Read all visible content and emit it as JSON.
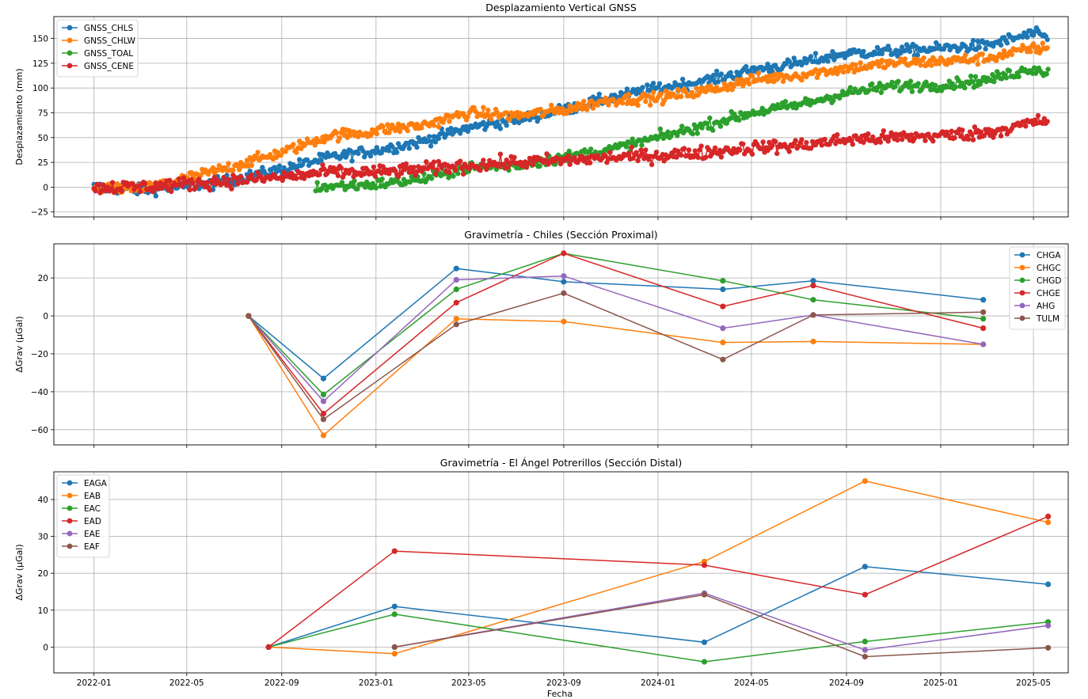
{
  "figure": {
    "xlabel": "Fecha"
  },
  "x_ticks": [
    "2022-01",
    "2022-05",
    "2022-09",
    "2023-01",
    "2023-05",
    "2023-09",
    "2024-01",
    "2024-05",
    "2024-09",
    "2025-01",
    "2025-05"
  ],
  "x_range": [
    "2021-11-10",
    "2025-06-15"
  ],
  "chart_data": [
    {
      "type": "line",
      "title": "Desplazamiento Vertical GNSS",
      "ylabel": "Desplazamiento (mm)",
      "ylim": [
        -30,
        172
      ],
      "yticks": [
        -25,
        0,
        25,
        50,
        75,
        100,
        125,
        150
      ],
      "grid": true,
      "legend_position": "top-left",
      "series": [
        {
          "name": "GNSS_CHLS",
          "color": "#1f77b4",
          "anchors": [
            [
              "2022-01-01",
              0
            ],
            [
              "2022-03-01",
              -3
            ],
            [
              "2022-06-01",
              3
            ],
            [
              "2022-09-01",
              18
            ],
            [
              "2022-11-01",
              30
            ],
            [
              "2023-01-01",
              37
            ],
            [
              "2023-03-01",
              46
            ],
            [
              "2023-05-01",
              60
            ],
            [
              "2023-07-01",
              68
            ],
            [
              "2023-09-01",
              78
            ],
            [
              "2023-11-01",
              90
            ],
            [
              "2024-01-01",
              100
            ],
            [
              "2024-03-01",
              107
            ],
            [
              "2024-05-01",
              118
            ],
            [
              "2024-07-01",
              125
            ],
            [
              "2024-09-01",
              135
            ],
            [
              "2024-11-01",
              137
            ],
            [
              "2025-01-01",
              140
            ],
            [
              "2025-03-01",
              143
            ],
            [
              "2025-05-01",
              155
            ],
            [
              "2025-05-20",
              150
            ]
          ],
          "noise": 5
        },
        {
          "name": "GNSS_CHLW",
          "color": "#ff7f0e",
          "anchors": [
            [
              "2022-01-01",
              0
            ],
            [
              "2022-03-01",
              -2
            ],
            [
              "2022-06-01",
              15
            ],
            [
              "2022-09-01",
              35
            ],
            [
              "2022-11-01",
              52
            ],
            [
              "2022-12-20",
              55
            ],
            [
              "2023-01-05",
              58
            ],
            [
              "2023-03-01",
              62
            ],
            [
              "2023-05-01",
              75
            ],
            [
              "2023-07-01",
              72
            ],
            [
              "2023-09-01",
              78
            ],
            [
              "2023-11-01",
              88
            ],
            [
              "2024-01-01",
              90
            ],
            [
              "2024-03-01",
              97
            ],
            [
              "2024-05-01",
              108
            ],
            [
              "2024-07-01",
              113
            ],
            [
              "2024-09-01",
              120
            ],
            [
              "2024-11-01",
              125
            ],
            [
              "2025-01-01",
              127
            ],
            [
              "2025-03-01",
              130
            ],
            [
              "2025-05-01",
              140
            ],
            [
              "2025-05-20",
              140
            ]
          ],
          "noise": 5
        },
        {
          "name": "GNSS_TOAL",
          "color": "#2ca02c",
          "anchors": [
            [
              "2022-10-15",
              0
            ],
            [
              "2023-01-01",
              3
            ],
            [
              "2023-03-01",
              8
            ],
            [
              "2023-05-01",
              20
            ],
            [
              "2023-07-01",
              22
            ],
            [
              "2023-09-01",
              30
            ],
            [
              "2023-11-01",
              38
            ],
            [
              "2024-01-01",
              50
            ],
            [
              "2024-03-01",
              62
            ],
            [
              "2024-05-01",
              75
            ],
            [
              "2024-07-01",
              83
            ],
            [
              "2024-09-01",
              95
            ],
            [
              "2024-11-01",
              102
            ],
            [
              "2025-01-01",
              103
            ],
            [
              "2025-03-01",
              108
            ],
            [
              "2025-05-01",
              120
            ],
            [
              "2025-05-20",
              115
            ]
          ],
          "noise": 5
        },
        {
          "name": "GNSS_CENE",
          "color": "#d62728",
          "anchors": [
            [
              "2022-01-01",
              0
            ],
            [
              "2022-03-01",
              0
            ],
            [
              "2022-06-01",
              5
            ],
            [
              "2022-09-01",
              10
            ],
            [
              "2022-11-01",
              15
            ],
            [
              "2023-01-01",
              15
            ],
            [
              "2023-03-01",
              18
            ],
            [
              "2023-05-01",
              22
            ],
            [
              "2023-07-01",
              25
            ],
            [
              "2023-09-01",
              27
            ],
            [
              "2023-11-01",
              30
            ],
            [
              "2024-01-01",
              32
            ],
            [
              "2024-03-01",
              35
            ],
            [
              "2024-05-01",
              40
            ],
            [
              "2024-07-01",
              42
            ],
            [
              "2024-09-01",
              48
            ],
            [
              "2024-11-01",
              50
            ],
            [
              "2025-01-01",
              52
            ],
            [
              "2025-03-01",
              55
            ],
            [
              "2025-05-01",
              65
            ],
            [
              "2025-05-20",
              68
            ]
          ],
          "noise": 6
        }
      ]
    },
    {
      "type": "line",
      "title": "Gravimetría - Chiles (Sección Proximal)",
      "ylabel": "ΔGrav (µGal)",
      "ylim": [
        -68,
        38
      ],
      "yticks": [
        -60,
        -40,
        -20,
        0,
        20
      ],
      "grid": true,
      "legend_position": "top-right",
      "series": [
        {
          "name": "CHGA",
          "color": "#1f77b4",
          "x": [
            "2022-07-20",
            "2022-10-25",
            "2023-04-15",
            "2023-09-01",
            "2024-03-25",
            "2024-07-20",
            "2025-02-25"
          ],
          "y": [
            0,
            -33,
            25,
            18,
            14,
            18.5,
            8.5
          ]
        },
        {
          "name": "CHGC",
          "color": "#ff7f0e",
          "x": [
            "2022-07-20",
            "2022-10-25",
            "2023-04-15",
            "2023-09-01",
            "2024-03-25",
            "2024-07-20",
            "2025-02-25"
          ],
          "y": [
            0,
            -63,
            -1.5,
            -3,
            -14,
            -13.5,
            -15
          ]
        },
        {
          "name": "CHGD",
          "color": "#2ca02c",
          "x": [
            "2022-07-20",
            "2022-10-25",
            "2023-04-15",
            "2023-09-01",
            "2024-03-25",
            "2024-07-20",
            "2025-02-25"
          ],
          "y": [
            0,
            -41.5,
            14,
            33,
            18.5,
            8.5,
            -1.5
          ]
        },
        {
          "name": "CHGE",
          "color": "#d62728",
          "x": [
            "2022-07-20",
            "2022-10-25",
            "2023-04-15",
            "2023-09-01",
            "2024-03-25",
            "2024-07-20",
            "2025-02-25"
          ],
          "y": [
            0,
            -51.5,
            7,
            33,
            5,
            16,
            -6.5
          ]
        },
        {
          "name": "AHG",
          "color": "#9467bd",
          "x": [
            "2022-07-20",
            "2022-10-25",
            "2023-04-15",
            "2023-09-01",
            "2024-03-25",
            "2024-07-20",
            "2025-02-25"
          ],
          "y": [
            0,
            -45,
            19,
            21,
            -6.5,
            0.5,
            -15
          ]
        },
        {
          "name": "TULM",
          "color": "#8c564b",
          "x": [
            "2022-07-20",
            "2022-10-25",
            "2023-04-15",
            "2023-09-01",
            "2024-03-25",
            "2024-07-20",
            "2025-02-25"
          ],
          "y": [
            0,
            -54.5,
            -4.5,
            12,
            -23,
            0.5,
            2
          ]
        }
      ]
    },
    {
      "type": "line",
      "title": "Gravimetría - El Ángel Potrerillos (Sección Distal)",
      "ylabel": "ΔGrav (µGal)",
      "ylim": [
        -7,
        47.5
      ],
      "yticks": [
        0,
        10,
        20,
        30,
        40
      ],
      "grid": true,
      "legend_position": "top-left",
      "series": [
        {
          "name": "EAGA",
          "color": "#1f77b4",
          "x": [
            "2022-08-15",
            "2023-01-25",
            "2024-03-01",
            "2024-09-25",
            "2025-05-20"
          ],
          "y": [
            0,
            11,
            1.3,
            21.8,
            17
          ]
        },
        {
          "name": "EAB",
          "color": "#ff7f0e",
          "x": [
            "2022-08-15",
            "2023-01-25",
            "2024-03-01",
            "2024-09-25",
            "2025-05-20"
          ],
          "y": [
            0,
            -1.8,
            23.2,
            45,
            33.8
          ]
        },
        {
          "name": "EAC",
          "color": "#2ca02c",
          "x": [
            "2022-08-15",
            "2023-01-25",
            "2024-03-01",
            "2024-09-25",
            "2025-05-20"
          ],
          "y": [
            0,
            8.9,
            -4,
            1.5,
            6.8
          ]
        },
        {
          "name": "EAD",
          "color": "#d62728",
          "x": [
            "2022-08-15",
            "2023-01-25",
            "2024-03-01",
            "2024-09-25",
            "2025-05-20"
          ],
          "y": [
            0,
            26,
            22.2,
            14.2,
            35.4
          ]
        },
        {
          "name": "EAE",
          "color": "#9467bd",
          "x": [
            "2023-01-25",
            "2024-03-01",
            "2024-09-25",
            "2025-05-20"
          ],
          "y": [
            0,
            14.6,
            -0.8,
            5.8
          ]
        },
        {
          "name": "EAF",
          "color": "#8c564b",
          "x": [
            "2023-01-25",
            "2024-03-01",
            "2024-09-25",
            "2025-05-20"
          ],
          "y": [
            0,
            14.2,
            -2.6,
            -0.2
          ]
        }
      ]
    }
  ]
}
